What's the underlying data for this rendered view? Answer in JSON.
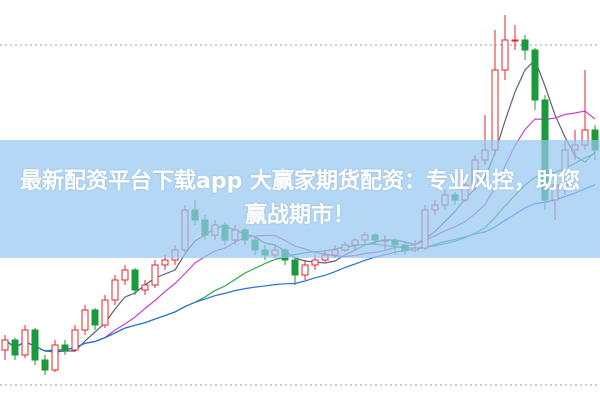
{
  "banner": {
    "title": "最新配资平台下载app 大赢家期货配资：专业风控，助您赢战期市！"
  },
  "chart_data": {
    "type": "candlestick",
    "title": "",
    "xlabel": "",
    "ylabel": "",
    "ylim": [
      0,
      400
    ],
    "grid": "dotted horizontal lines",
    "colors": {
      "up": "#e3262c",
      "down": "#1a9a3a",
      "ma": [
        "#556677",
        "#cc44cc",
        "#22aa44",
        "#2b6fd6"
      ]
    },
    "moving_averages": [
      5,
      10,
      20,
      30
    ],
    "candles": [
      [
        50,
        65,
        40,
        60
      ],
      [
        60,
        62,
        40,
        45
      ],
      [
        45,
        75,
        42,
        70
      ],
      [
        70,
        72,
        35,
        40
      ],
      [
        40,
        45,
        25,
        30
      ],
      [
        30,
        60,
        28,
        55
      ],
      [
        55,
        60,
        45,
        50
      ],
      [
        50,
        75,
        48,
        70
      ],
      [
        70,
        95,
        65,
        90
      ],
      [
        90,
        92,
        70,
        75
      ],
      [
        75,
        105,
        72,
        100
      ],
      [
        100,
        125,
        95,
        120
      ],
      [
        120,
        135,
        115,
        130
      ],
      [
        130,
        132,
        105,
        110
      ],
      [
        110,
        120,
        105,
        115
      ],
      [
        115,
        140,
        112,
        135
      ],
      [
        135,
        145,
        130,
        140
      ],
      [
        140,
        155,
        135,
        150
      ],
      [
        150,
        195,
        148,
        190
      ],
      [
        190,
        200,
        175,
        180
      ],
      [
        180,
        185,
        160,
        165
      ],
      [
        165,
        180,
        160,
        175
      ],
      [
        175,
        178,
        155,
        160
      ],
      [
        160,
        175,
        155,
        170
      ],
      [
        170,
        172,
        155,
        160
      ],
      [
        160,
        162,
        145,
        150
      ],
      [
        150,
        155,
        140,
        145
      ],
      [
        145,
        155,
        142,
        150
      ],
      [
        150,
        152,
        135,
        140
      ],
      [
        140,
        142,
        115,
        125
      ],
      [
        125,
        140,
        120,
        135
      ],
      [
        135,
        145,
        130,
        140
      ],
      [
        140,
        150,
        138,
        145
      ],
      [
        145,
        155,
        142,
        150
      ],
      [
        150,
        158,
        148,
        155
      ],
      [
        155,
        162,
        150,
        160
      ],
      [
        160,
        168,
        155,
        165
      ],
      [
        165,
        167,
        155,
        160
      ],
      [
        160,
        165,
        150,
        160
      ],
      [
        160,
        162,
        145,
        155
      ],
      [
        155,
        158,
        145,
        150
      ],
      [
        150,
        160,
        148,
        152
      ],
      [
        152,
        195,
        150,
        190
      ],
      [
        190,
        200,
        185,
        195
      ],
      [
        195,
        210,
        190,
        205
      ],
      [
        205,
        208,
        195,
        200
      ],
      [
        200,
        220,
        198,
        215
      ],
      [
        215,
        245,
        210,
        240
      ],
      [
        240,
        285,
        235,
        250
      ],
      [
        250,
        370,
        245,
        330
      ],
      [
        330,
        385,
        320,
        360
      ],
      [
        360,
        375,
        350,
        360
      ],
      [
        360,
        365,
        340,
        350
      ],
      [
        350,
        352,
        290,
        300
      ],
      [
        300,
        305,
        190,
        200
      ],
      [
        200,
        225,
        180,
        215
      ],
      [
        215,
        260,
        205,
        250
      ],
      [
        250,
        270,
        240,
        255
      ],
      [
        255,
        330,
        250,
        270
      ],
      [
        270,
        275,
        240,
        250
      ]
    ]
  }
}
